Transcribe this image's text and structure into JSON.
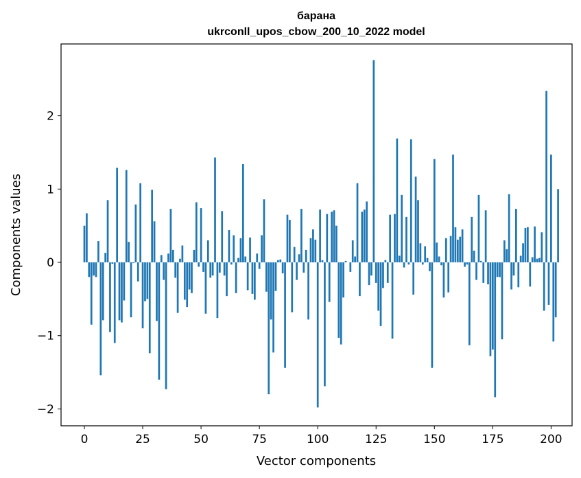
{
  "chart_data": {
    "type": "bar",
    "title": "барана",
    "subtitle": "ukrconll_upos_cbow_200_10_2022 model",
    "xlabel": "Vector components",
    "ylabel": "Components values",
    "xlim": [
      -10,
      209
    ],
    "ylim": [
      -2.23,
      2.98
    ],
    "xticks": [
      0,
      25,
      50,
      75,
      100,
      125,
      150,
      175,
      200
    ],
    "xtick_labels": [
      "0",
      "25",
      "50",
      "75",
      "100",
      "125",
      "150",
      "175",
      "200"
    ],
    "yticks": [
      -2,
      -1,
      0,
      1,
      2
    ],
    "ytick_labels": [
      "−2",
      "−1",
      "0",
      "1",
      "2"
    ],
    "bar_color": "#1f77b4",
    "grid": false,
    "values": [
      0.5,
      0.67,
      -0.2,
      -0.85,
      -0.18,
      -0.2,
      0.29,
      -1.54,
      -0.79,
      0.13,
      0.85,
      -0.95,
      -0.02,
      -1.1,
      1.29,
      -0.79,
      -0.82,
      -0.52,
      1.26,
      0.28,
      -0.75,
      -0.01,
      0.79,
      -0.26,
      1.08,
      -0.9,
      -0.53,
      -0.5,
      -1.24,
      0.99,
      0.56,
      -0.8,
      -1.6,
      0.1,
      -0.24,
      -1.73,
      0.12,
      0.73,
      0.17,
      -0.21,
      -0.69,
      0.05,
      0.23,
      -0.51,
      -0.61,
      -0.37,
      -0.42,
      0.17,
      0.82,
      -0.06,
      0.74,
      -0.13,
      -0.7,
      0.3,
      -0.21,
      -0.18,
      1.43,
      -0.76,
      -0.14,
      0.7,
      -0.18,
      -0.46,
      0.44,
      -0.03,
      0.37,
      -0.42,
      0.06,
      0.33,
      1.34,
      0.08,
      -0.38,
      0.34,
      -0.43,
      -0.51,
      0.12,
      -0.09,
      0.37,
      0.86,
      -0.4,
      -1.8,
      -0.78,
      -1.23,
      -0.39,
      0.03,
      0.04,
      -0.15,
      -1.44,
      0.65,
      0.58,
      -0.68,
      0.21,
      -0.24,
      0.11,
      0.73,
      -0.14,
      0.17,
      -0.78,
      0.33,
      0.45,
      0.31,
      -1.98,
      0.72,
      0.03,
      -1.69,
      0.66,
      -0.54,
      0.69,
      0.71,
      0.5,
      -1.03,
      -1.12,
      -0.48,
      0.02,
      0.0,
      -0.13,
      0.3,
      0.08,
      1.08,
      -0.46,
      0.69,
      0.72,
      0.83,
      -0.31,
      -0.18,
      2.76,
      -0.28,
      -0.66,
      -0.87,
      -0.35,
      0.03,
      -0.28,
      0.65,
      -1.04,
      0.66,
      1.69,
      0.09,
      0.92,
      -0.07,
      0.62,
      -0.03,
      1.68,
      -0.44,
      1.17,
      0.85,
      0.26,
      -0.03,
      0.22,
      0.06,
      -0.12,
      -1.44,
      1.41,
      0.27,
      0.08,
      -0.04,
      -0.48,
      0.33,
      -0.41,
      0.36,
      1.47,
      0.48,
      0.31,
      0.35,
      0.45,
      -0.06,
      -0.03,
      -1.13,
      0.62,
      0.16,
      -0.24,
      0.92,
      0.02,
      -0.28,
      0.71,
      -0.3,
      -1.28,
      -1.19,
      -1.84,
      -0.2,
      -0.2,
      -1.05,
      0.3,
      0.18,
      0.93,
      -0.37,
      -0.18,
      0.73,
      -0.34,
      0.09,
      0.26,
      0.47,
      0.48,
      -0.33,
      0.07,
      0.49,
      0.05,
      0.06,
      0.41,
      -0.66,
      2.34,
      -0.58,
      1.47,
      -1.08,
      -0.75,
      1.0
    ]
  }
}
